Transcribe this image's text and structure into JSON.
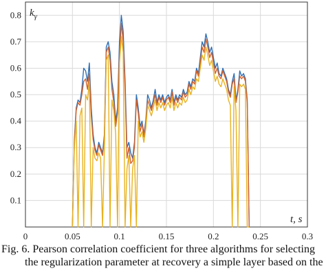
{
  "chart_data": {
    "type": "line",
    "ylabel_symbol": "k",
    "ylabel_subscript": "γ",
    "xlabel": "t, s",
    "xlim": [
      0,
      0.3
    ],
    "ylim": [
      0,
      0.85
    ],
    "xticks": [
      "0",
      "0.05",
      "0.1",
      "0.15",
      "0.2",
      "0.25",
      "0.3"
    ],
    "yticks": [
      "0.1",
      "0.2",
      "0.3",
      "0.4",
      "0.5",
      "0.6",
      "0.7",
      "0.8"
    ],
    "grid": true,
    "colors": [
      "#2f6fb5",
      "#d4622a",
      "#e8b21f"
    ],
    "series": [
      {
        "x": [
          0.05,
          0.052,
          0.054,
          0.056,
          0.058,
          0.06,
          0.062,
          0.064,
          0.066,
          0.068,
          0.07,
          0.072,
          0.074,
          0.076,
          0.078,
          0.08,
          0.082,
          0.084,
          0.086,
          0.088,
          0.09,
          0.092,
          0.094,
          0.096,
          0.098,
          0.1,
          0.102,
          0.104,
          0.106,
          0.108,
          0.11,
          0.112,
          0.114,
          0.116,
          0.118,
          0.12,
          0.122,
          0.124,
          0.126,
          0.128,
          0.13,
          0.132,
          0.134,
          0.136,
          0.138,
          0.14,
          0.142,
          0.144,
          0.146,
          0.148,
          0.15,
          0.152,
          0.154,
          0.156,
          0.158,
          0.16,
          0.162,
          0.164,
          0.166,
          0.168,
          0.17,
          0.172,
          0.174,
          0.176,
          0.178,
          0.18,
          0.182,
          0.184,
          0.186,
          0.188,
          0.19,
          0.192,
          0.194,
          0.196,
          0.198,
          0.2,
          0.202,
          0.204,
          0.206,
          0.208,
          0.21,
          0.212,
          0.214,
          0.216,
          0.218,
          0.22,
          0.222,
          0.224,
          0.226,
          0.228,
          0.23,
          0.232,
          0.234,
          0.236,
          0.238
        ],
        "y": [
          0.0,
          0.33,
          0.45,
          0.48,
          0.47,
          0.52,
          0.6,
          0.59,
          0.55,
          0.62,
          0.45,
          0.35,
          0.3,
          0.28,
          0.32,
          0.3,
          0.28,
          0.35,
          0.68,
          0.7,
          0.66,
          0.55,
          0.5,
          0.4,
          0.45,
          0.7,
          0.8,
          0.74,
          0.55,
          0.3,
          0.32,
          0.28,
          0.26,
          0.32,
          0.5,
          0.45,
          0.38,
          0.4,
          0.35,
          0.4,
          0.5,
          0.48,
          0.45,
          0.48,
          0.52,
          0.47,
          0.5,
          0.48,
          0.5,
          0.47,
          0.49,
          0.5,
          0.48,
          0.52,
          0.47,
          0.5,
          0.48,
          0.5,
          0.49,
          0.52,
          0.5,
          0.51,
          0.55,
          0.53,
          0.56,
          0.55,
          0.6,
          0.58,
          0.64,
          0.7,
          0.68,
          0.73,
          0.7,
          0.66,
          0.68,
          0.64,
          0.6,
          0.62,
          0.58,
          0.57,
          0.6,
          0.58,
          0.56,
          0.52,
          0.5,
          0.55,
          0.58,
          0.48,
          0.52,
          0.59,
          0.57,
          0.58,
          0.56,
          0.48,
          0.0
        ]
      },
      {
        "x": [
          0.05,
          0.052,
          0.054,
          0.056,
          0.058,
          0.06,
          0.062,
          0.064,
          0.066,
          0.068,
          0.07,
          0.072,
          0.074,
          0.076,
          0.078,
          0.08,
          0.082,
          0.084,
          0.086,
          0.088,
          0.09,
          0.092,
          0.094,
          0.096,
          0.098,
          0.1,
          0.102,
          0.104,
          0.106,
          0.108,
          0.11,
          0.112,
          0.114,
          0.116,
          0.118,
          0.12,
          0.122,
          0.124,
          0.126,
          0.128,
          0.13,
          0.132,
          0.134,
          0.136,
          0.138,
          0.14,
          0.142,
          0.144,
          0.146,
          0.148,
          0.15,
          0.152,
          0.154,
          0.156,
          0.158,
          0.16,
          0.162,
          0.164,
          0.166,
          0.168,
          0.17,
          0.172,
          0.174,
          0.176,
          0.178,
          0.18,
          0.182,
          0.184,
          0.186,
          0.188,
          0.19,
          0.192,
          0.194,
          0.196,
          0.198,
          0.2,
          0.202,
          0.204,
          0.206,
          0.208,
          0.21,
          0.212,
          0.214,
          0.216,
          0.218,
          0.22,
          0.222,
          0.224,
          0.226,
          0.228,
          0.23,
          0.232,
          0.234,
          0.236,
          0.238
        ],
        "y": [
          0.0,
          0.32,
          0.44,
          0.47,
          0.46,
          0.5,
          0.55,
          0.56,
          0.52,
          0.58,
          0.42,
          0.33,
          0.29,
          0.27,
          0.31,
          0.29,
          0.27,
          0.34,
          0.66,
          0.68,
          0.63,
          0.52,
          0.47,
          0.38,
          0.43,
          0.65,
          0.77,
          0.7,
          0.52,
          0.26,
          0.3,
          0.24,
          0.25,
          0.3,
          0.48,
          0.43,
          0.36,
          0.39,
          0.34,
          0.39,
          0.48,
          0.46,
          0.44,
          0.47,
          0.5,
          0.46,
          0.49,
          0.47,
          0.49,
          0.46,
          0.48,
          0.49,
          0.47,
          0.51,
          0.46,
          0.49,
          0.47,
          0.49,
          0.48,
          0.51,
          0.49,
          0.5,
          0.54,
          0.52,
          0.55,
          0.54,
          0.59,
          0.57,
          0.62,
          0.68,
          0.66,
          0.71,
          0.68,
          0.64,
          0.66,
          0.62,
          0.58,
          0.6,
          0.57,
          0.56,
          0.59,
          0.57,
          0.55,
          0.51,
          0.49,
          0.54,
          0.56,
          0.47,
          0.51,
          0.57,
          0.56,
          0.57,
          0.55,
          0.47,
          0.0
        ]
      },
      {
        "x": [
          0.05,
          0.052,
          0.054,
          0.056,
          0.058,
          0.06,
          0.062,
          0.064,
          0.066,
          0.068,
          0.07,
          0.072,
          0.074,
          0.076,
          0.078,
          0.08,
          0.082,
          0.084,
          0.086,
          0.088,
          0.09,
          0.092,
          0.094,
          0.096,
          0.098,
          0.1,
          0.102,
          0.104,
          0.106,
          0.108,
          0.11,
          0.112,
          0.114,
          0.116,
          0.118,
          0.12,
          0.122,
          0.124,
          0.126,
          0.128,
          0.13,
          0.132,
          0.134,
          0.136,
          0.138,
          0.14,
          0.142,
          0.144,
          0.146,
          0.148,
          0.15,
          0.152,
          0.154,
          0.156,
          0.158,
          0.16,
          0.162,
          0.164,
          0.166,
          0.168,
          0.17,
          0.172,
          0.174,
          0.176,
          0.178,
          0.18,
          0.182,
          0.184,
          0.186,
          0.188,
          0.19,
          0.192,
          0.194,
          0.196,
          0.198,
          0.2,
          0.202,
          0.204,
          0.206,
          0.208,
          0.21,
          0.212,
          0.214,
          0.216,
          0.218,
          0.22,
          0.222,
          0.224,
          0.226,
          0.228,
          0.23,
          0.232,
          0.234,
          0.236,
          0.238
        ],
        "y": [
          0.0,
          0.3,
          0.4,
          0.0,
          0.42,
          0.45,
          0.0,
          0.5,
          0.48,
          0.55,
          0.0,
          0.3,
          0.26,
          0.25,
          0.28,
          0.26,
          0.0,
          0.3,
          0.63,
          0.65,
          0.0,
          0.48,
          0.44,
          0.35,
          0.0,
          0.62,
          0.72,
          0.66,
          0.0,
          0.22,
          0.27,
          0.0,
          0.22,
          0.27,
          0.0,
          0.4,
          0.34,
          0.36,
          0.32,
          0.37,
          0.46,
          0.44,
          0.42,
          0.45,
          0.48,
          0.44,
          0.47,
          0.45,
          0.47,
          0.44,
          0.46,
          0.47,
          0.45,
          0.49,
          0.44,
          0.47,
          0.45,
          0.47,
          0.46,
          0.49,
          0.47,
          0.48,
          0.52,
          0.5,
          0.53,
          0.52,
          0.56,
          0.55,
          0.6,
          0.65,
          0.63,
          0.68,
          0.65,
          0.61,
          0.63,
          0.59,
          0.55,
          0.57,
          0.54,
          0.53,
          0.56,
          0.54,
          0.52,
          0.48,
          0.46,
          0.0,
          0.53,
          0.44,
          0.0,
          0.54,
          0.53,
          0.54,
          0.52,
          0.0,
          0.0
        ]
      }
    ]
  },
  "caption": {
    "line1": "Fig. 6.  Pearson correlation coefficient for three algorithms for selecting",
    "line2": "the regularization parameter at recovery a simple layer based on the"
  }
}
